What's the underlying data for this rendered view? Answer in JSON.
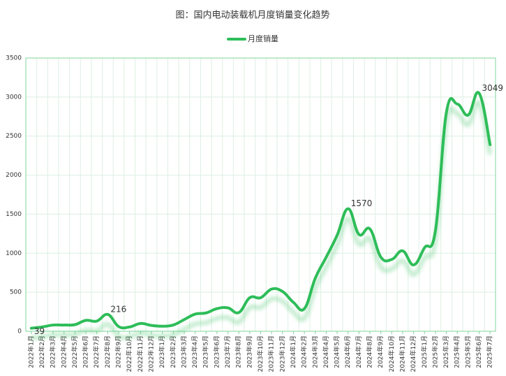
{
  "chart_data": {
    "type": "line",
    "title": "图：国内电动装载机月度销量变化趋势",
    "categories": [
      "2022年1月",
      "2022年2月",
      "2022年3月",
      "2022年4月",
      "2022年5月",
      "2022年6月",
      "2022年7月",
      "2022年8月",
      "2022年9月",
      "2022年10月",
      "2022年11月",
      "2022年12月",
      "2023年1月",
      "2023年2月",
      "2023年3月",
      "2023年4月",
      "2023年5月",
      "2023年6月",
      "2023年7月",
      "2023年8月",
      "2023年9月",
      "2023年10月",
      "2023年11月",
      "2023年12月",
      "2024年1月",
      "2024年2月",
      "2024年3月",
      "2024年4月",
      "2024年5月",
      "2024年6月",
      "2024年7月",
      "2024年8月",
      "2024年9月",
      "2024年10月",
      "2024年11月",
      "2024年12月",
      "2025年1月",
      "2025年2月",
      "2025年3月",
      "2025年4月",
      "2025年5月",
      "2025年6月",
      "2025年7月"
    ],
    "series": [
      {
        "name": "月度销量",
        "color": "#2ebd59",
        "values": [
          39,
          55,
          80,
          80,
          85,
          140,
          130,
          216,
          60,
          55,
          100,
          75,
          65,
          80,
          150,
          220,
          235,
          290,
          300,
          240,
          430,
          430,
          540,
          510,
          370,
          290,
          680,
          950,
          1230,
          1570,
          1240,
          1310,
          950,
          920,
          1030,
          850,
          1070,
          1290,
          2800,
          2910,
          2770,
          3049,
          2390
        ],
        "value_labels": [
          "39",
          null,
          null,
          null,
          null,
          null,
          null,
          "216",
          null,
          null,
          null,
          null,
          null,
          null,
          null,
          null,
          null,
          null,
          null,
          null,
          null,
          null,
          null,
          null,
          null,
          null,
          null,
          null,
          null,
          "1570",
          null,
          null,
          null,
          null,
          null,
          null,
          null,
          null,
          null,
          null,
          null,
          "3049",
          null
        ]
      }
    ],
    "ylim": [
      0,
      3500
    ],
    "yticks": [
      0,
      500,
      1000,
      1500,
      2000,
      2500,
      3000,
      3500
    ],
    "grid": true,
    "legend": "top"
  }
}
